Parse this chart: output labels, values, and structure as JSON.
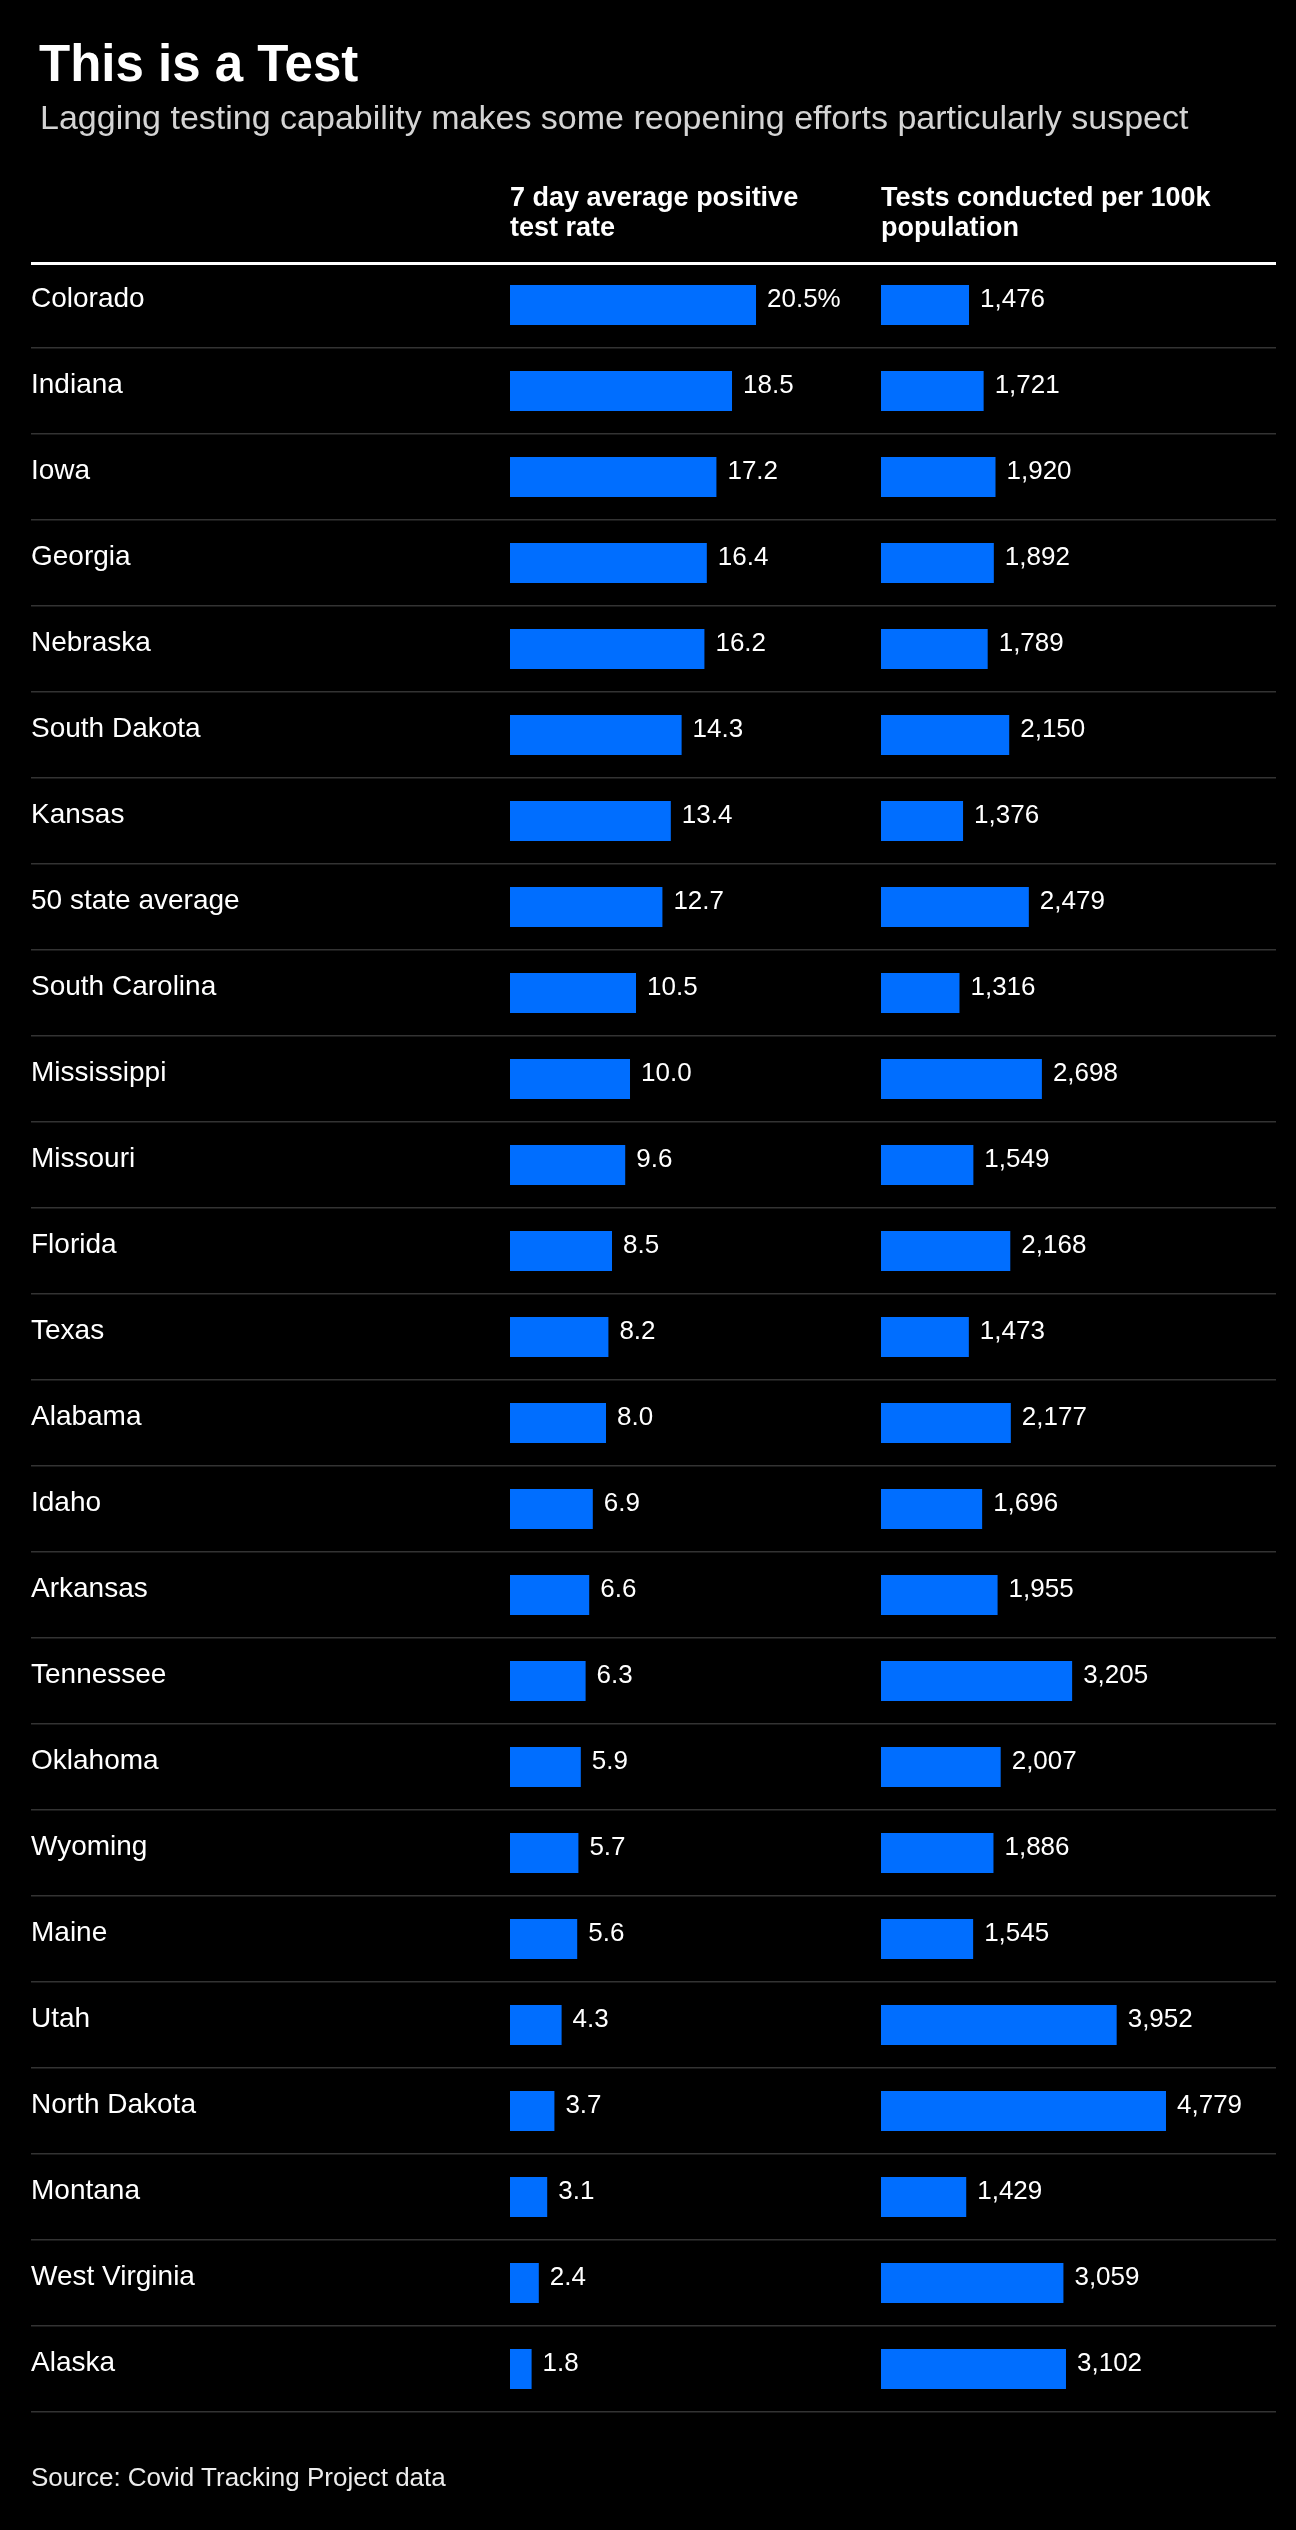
{
  "chart_data": [
    {
      "type": "bar",
      "orientation": "horizontal",
      "title": "This is a Test",
      "subtitle": "Lagging testing capability makes some reopening efforts particularly suspect",
      "xlabel": "7 day average positive test rate",
      "annotations": [
        "Source: Covid Tracking Project data"
      ],
      "categories": [
        "Colorado",
        "Indiana",
        "Iowa",
        "Georgia",
        "Nebraska",
        "South Dakota",
        "Kansas",
        "50 state average",
        "South Carolina",
        "Mississippi",
        "Missouri",
        "Florida",
        "Texas",
        "Alabama",
        "Idaho",
        "Arkansas",
        "Tennessee",
        "Oklahoma",
        "Wyoming",
        "Maine",
        "Utah",
        "North Dakota",
        "Montana",
        "West Virginia",
        "Alaska"
      ],
      "values": [
        20.5,
        18.5,
        17.2,
        16.4,
        16.2,
        14.3,
        13.4,
        12.7,
        10.5,
        10.0,
        9.6,
        8.5,
        8.2,
        8.0,
        6.9,
        6.6,
        6.3,
        5.9,
        5.7,
        5.6,
        4.3,
        3.7,
        3.1,
        2.4,
        1.8
      ],
      "value_labels": [
        "20.5%",
        "18.5",
        "17.2",
        "16.4",
        "16.2",
        "14.3",
        "13.4",
        "12.7",
        "10.5",
        "10.0",
        "9.6",
        "8.5",
        "8.2",
        "8.0",
        "6.9",
        "6.6",
        "6.3",
        "5.9",
        "5.7",
        "5.6",
        "4.3",
        "3.7",
        "3.1",
        "2.4",
        "1.8"
      ],
      "color": "#006eff",
      "grid": "y",
      "tick_labels": "y"
    },
    {
      "type": "bar",
      "orientation": "horizontal",
      "xlabel": "Tests conducted per 100k population",
      "categories": [
        null,
        null,
        null,
        null,
        null,
        null,
        null,
        null,
        null,
        null,
        null,
        null,
        null,
        null,
        null,
        null,
        null,
        null,
        null,
        null,
        null,
        null,
        null,
        null,
        null
      ],
      "values": [
        1476,
        1721,
        1920,
        1892,
        1789,
        2150,
        1376,
        2479,
        1316,
        2698,
        1549,
        2168,
        1473,
        2177,
        1696,
        1955,
        3205,
        2007,
        1886,
        1545,
        3952,
        4779,
        1429,
        3059,
        3102
      ],
      "value_labels": [
        "1,476",
        "1,721",
        "1,920",
        "1,892",
        "1,789",
        "2,150",
        "1,376",
        "2,479",
        "1,316",
        "2,698",
        "1,549",
        "2,168",
        "1,473",
        "2,177",
        "1,696",
        "1,955",
        "3,205",
        "2,007",
        "1,886",
        "1,545",
        "3,952",
        "4,779",
        "1,429",
        "3,059",
        "3,102"
      ],
      "color": "#006eff",
      "grid": "y"
    }
  ]
}
